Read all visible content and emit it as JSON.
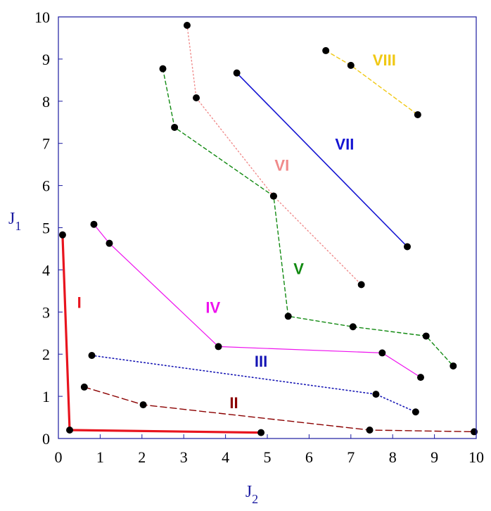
{
  "chart_data": {
    "type": "line",
    "xlabel": "J",
    "xlabel_sub": "2",
    "ylabel": "J",
    "ylabel_sub": "1",
    "xlim": [
      0,
      10
    ],
    "ylim": [
      0,
      10
    ],
    "xticks": [
      "0",
      "1",
      "2",
      "3",
      "4",
      "5",
      "6",
      "7",
      "8",
      "9",
      "10"
    ],
    "yticks": [
      "0",
      "1",
      "2",
      "3",
      "4",
      "5",
      "6",
      "7",
      "8",
      "9",
      "10"
    ],
    "grid": false,
    "legend": "none",
    "series": [
      {
        "name": "I",
        "color": "#e8141e",
        "dash": "solid",
        "width": 3.2,
        "label_at": [
          0.5,
          3.1
        ],
        "points": [
          [
            0.1,
            4.83
          ],
          [
            0.27,
            0.2
          ],
          [
            4.85,
            0.14
          ]
        ]
      },
      {
        "name": "II",
        "color": "#8b0000",
        "dash": "long",
        "width": 1.4,
        "label_at": [
          4.2,
          0.72
        ],
        "points": [
          [
            0.62,
            1.22
          ],
          [
            2.03,
            0.8
          ],
          [
            7.45,
            0.2
          ],
          [
            9.95,
            0.16
          ]
        ]
      },
      {
        "name": "III",
        "color": "#1414b4",
        "dash": "dotted",
        "width": 1.6,
        "label_at": [
          4.85,
          1.7
        ],
        "points": [
          [
            0.8,
            1.97
          ],
          [
            7.6,
            1.05
          ],
          [
            8.55,
            0.63
          ]
        ]
      },
      {
        "name": "IV",
        "color": "#ee12ee",
        "dash": "solid",
        "width": 1.2,
        "label_at": [
          3.7,
          2.98
        ],
        "points": [
          [
            0.85,
            5.08
          ],
          [
            1.22,
            4.63
          ],
          [
            3.83,
            2.18
          ],
          [
            7.75,
            2.03
          ],
          [
            8.67,
            1.45
          ]
        ]
      },
      {
        "name": "V",
        "color": "#128a12",
        "dash": "dashed",
        "width": 1.4,
        "label_at": [
          5.75,
          3.9
        ],
        "points": [
          [
            2.5,
            8.77
          ],
          [
            2.78,
            7.38
          ],
          [
            5.15,
            5.75
          ],
          [
            5.5,
            2.9
          ],
          [
            7.05,
            2.65
          ],
          [
            8.8,
            2.43
          ],
          [
            9.45,
            1.72
          ]
        ]
      },
      {
        "name": "VI",
        "color": "#f08a8a",
        "dash": "dotted",
        "width": 1.4,
        "label_at": [
          5.35,
          6.35
        ],
        "points": [
          [
            3.08,
            9.8
          ],
          [
            3.3,
            8.08
          ],
          [
            5.15,
            5.75
          ],
          [
            7.25,
            3.65
          ]
        ]
      },
      {
        "name": "VII",
        "color": "#1414d2",
        "dash": "solid",
        "width": 1.6,
        "label_at": [
          6.85,
          6.85
        ],
        "points": [
          [
            4.27,
            8.67
          ],
          [
            8.35,
            4.55
          ]
        ]
      },
      {
        "name": "VIII",
        "color": "#f0c814",
        "dash": "dashed",
        "width": 1.4,
        "label_at": [
          7.8,
          8.85
        ],
        "points": [
          [
            6.4,
            9.2
          ],
          [
            7.0,
            8.85
          ],
          [
            8.6,
            7.68
          ]
        ]
      }
    ]
  }
}
